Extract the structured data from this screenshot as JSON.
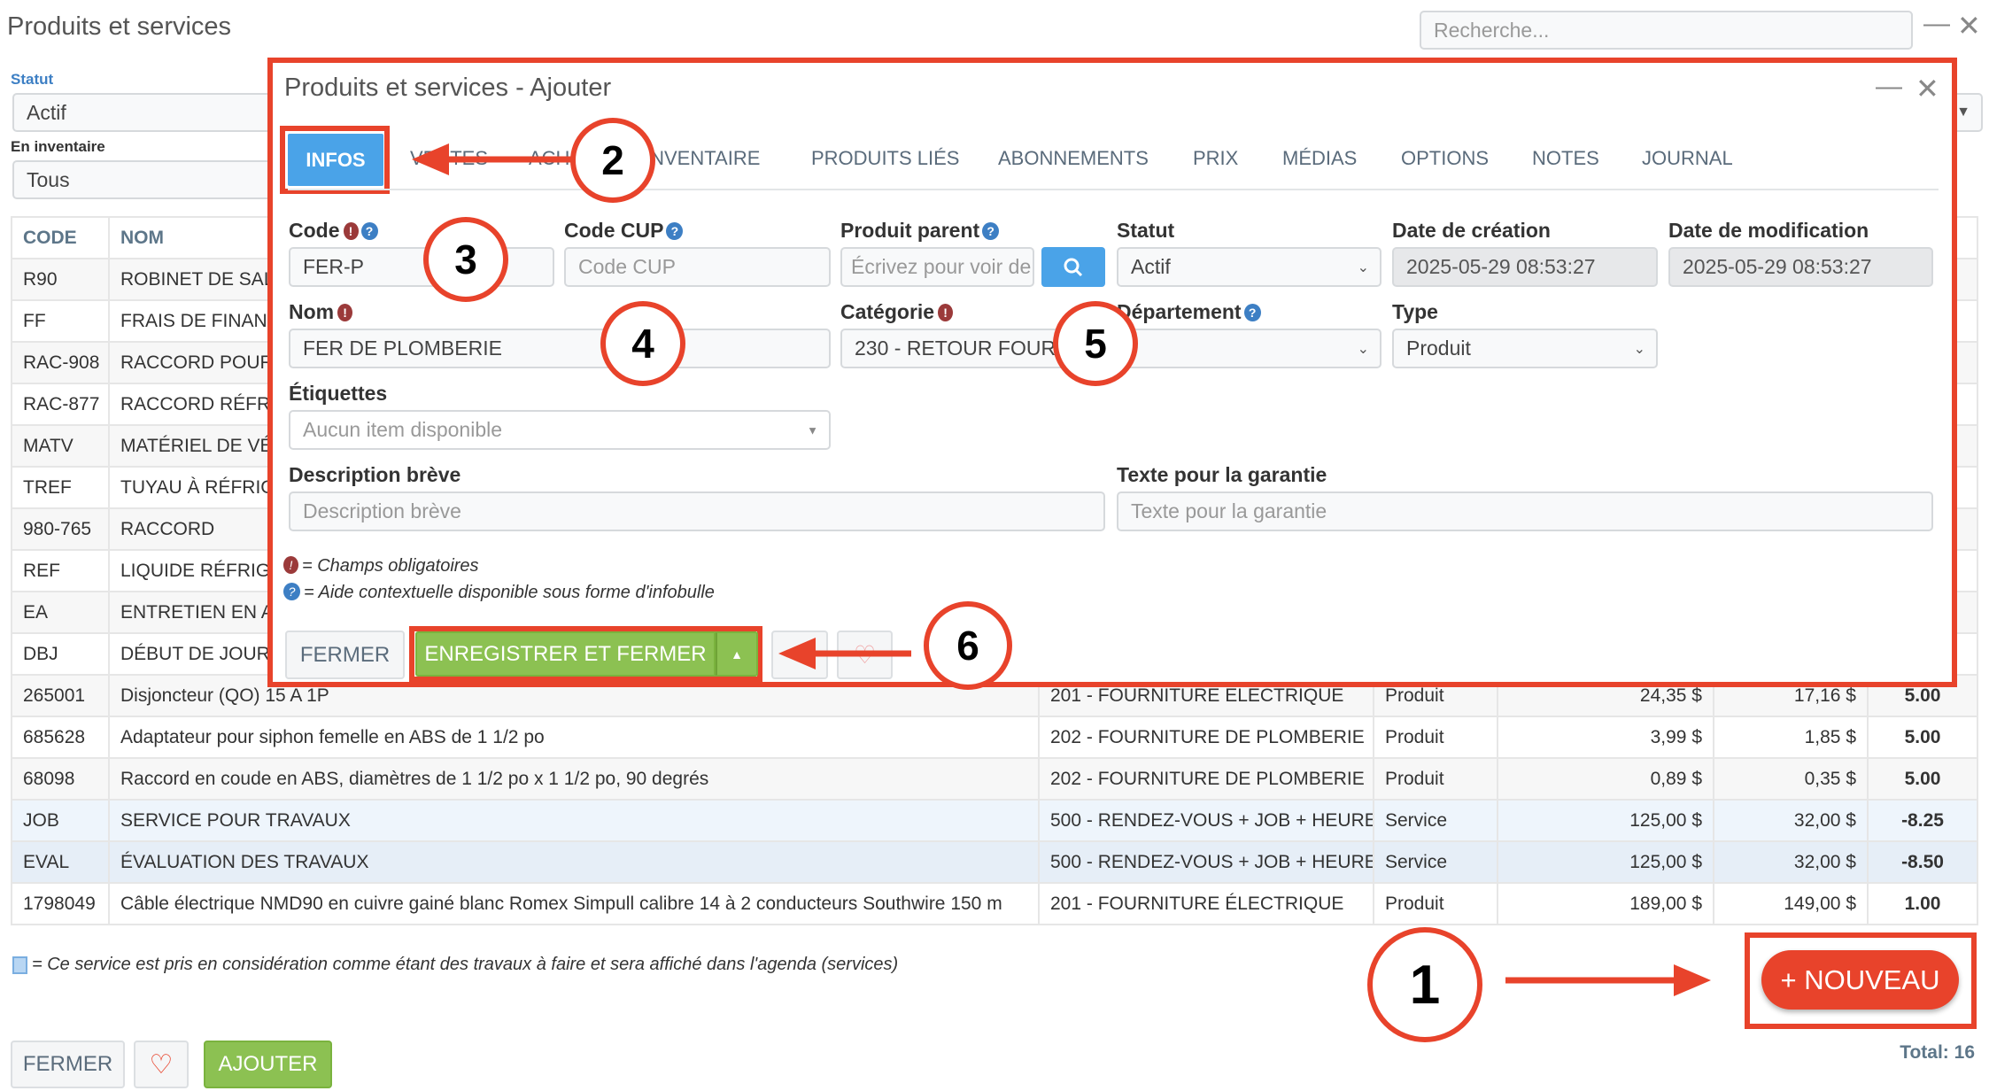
{
  "window": {
    "title": "Produits et services",
    "search_placeholder": "Recherche...",
    "minimize_icon": "minimize-icon",
    "close_icon": "close-icon"
  },
  "filters": {
    "status_label": "Statut",
    "status_value": "Actif",
    "inventory_label": "En inventaire",
    "inventory_value": "Tous"
  },
  "table": {
    "headers": [
      "CODE",
      "NOM",
      "",
      "",
      "",
      "",
      ""
    ],
    "rows": [
      {
        "cells": [
          "R90",
          "ROBINET DE SAL",
          "",
          "",
          "",
          "",
          ""
        ]
      },
      {
        "cells": [
          "FF",
          "FRAIS DE FINANC",
          "",
          "",
          "",
          "",
          ""
        ]
      },
      {
        "cells": [
          "RAC-908",
          "RACCORD POUR",
          "",
          "",
          "",
          "",
          ""
        ]
      },
      {
        "cells": [
          "RAC-877",
          "RACCORD RÉFRIG",
          "",
          "",
          "",
          "",
          ""
        ]
      },
      {
        "cells": [
          "MATV",
          "MATÉRIEL DE VÉ",
          "",
          "",
          "",
          "",
          ""
        ]
      },
      {
        "cells": [
          "TREF",
          "TUYAU À RÉFRIGI",
          "",
          "",
          "",
          "",
          ""
        ]
      },
      {
        "cells": [
          "980-765",
          "RACCORD",
          "",
          "",
          "",
          "",
          ""
        ]
      },
      {
        "cells": [
          "REF",
          "LIQUIDE RÉFRIGÉ",
          "",
          "",
          "",
          "",
          ""
        ]
      },
      {
        "cells": [
          "EA",
          "ENTRETIEN EN A",
          "",
          "",
          "",
          "",
          ""
        ]
      },
      {
        "cells": [
          "DBJ",
          "DÉBUT DE JOURN",
          "",
          "",
          "",
          "",
          ""
        ]
      },
      {
        "cells": [
          "265001",
          "Disjoncteur (QO) 15 A 1P",
          "201 - FOURNITURE ÉLECTRIQUE",
          "Produit",
          "24,35 $",
          "17,16 $",
          "5.00"
        ]
      },
      {
        "cells": [
          "685628",
          "Adaptateur pour siphon femelle en ABS de 1 1/2 po",
          "202 - FOURNITURE DE PLOMBERIE",
          "Produit",
          "3,99 $",
          "1,85 $",
          "5.00"
        ]
      },
      {
        "cells": [
          "68098",
          "Raccord en coude en ABS, diamètres de 1 1/2 po x 1 1/2 po, 90 degrés",
          "202 - FOURNITURE DE PLOMBERIE",
          "Produit",
          "0,89 $",
          "0,35 $",
          "5.00"
        ]
      },
      {
        "cells": [
          "JOB",
          "SERVICE POUR TRAVAUX",
          "500 - RENDEZ-VOUS + JOB + HEURE",
          "Service",
          "125,00 $",
          "32,00 $",
          "-8.25"
        ],
        "service": "job"
      },
      {
        "cells": [
          "EVAL",
          "ÉVALUATION DES TRAVAUX",
          "500 - RENDEZ-VOUS + JOB + HEURE",
          "Service",
          "125,00 $",
          "32,00 $",
          "-8.50"
        ],
        "service": "eval"
      },
      {
        "cells": [
          "1798049",
          "Câble électrique NMD90 en cuivre gainé blanc Romex Simpull calibre 14 à 2 conducteurs Southwire 150 m",
          "201 - FOURNITURE ÉLECTRIQUE",
          "Produit",
          "189,00 $",
          "149,00 $",
          "1.00"
        ]
      }
    ]
  },
  "service_note": "= Ce service est pris en considération comme étant des travaux à faire et sera affiché dans l'agenda (services)",
  "footer": {
    "close_label": "FERMER",
    "add_label": "AJOUTER",
    "new_label": "+ NOUVEAU",
    "total": "Total: 16"
  },
  "modal": {
    "title": "Produits et services - Ajouter",
    "tabs": [
      "INFOS",
      "VENTES",
      "ACH",
      "INVENTAIRE",
      "PRODUITS LIÉS",
      "ABONNEMENTS",
      "PRIX",
      "MÉDIAS",
      "OPTIONS",
      "NOTES",
      "JOURNAL"
    ],
    "active_tab": "INFOS",
    "fields": {
      "code": {
        "label": "Code",
        "value": "FER-P"
      },
      "cup": {
        "label": "Code CUP",
        "placeholder": "Code CUP"
      },
      "parent": {
        "label": "Produit parent",
        "placeholder": "Écrivez pour voir de"
      },
      "statut": {
        "label": "Statut",
        "value": "Actif"
      },
      "created": {
        "label": "Date de création",
        "value": "2025-05-29 08:53:27"
      },
      "modified": {
        "label": "Date de modification",
        "value": "2025-05-29 08:53:27"
      },
      "nom": {
        "label": "Nom",
        "value": "FER DE PLOMBERIE"
      },
      "categorie": {
        "label": "Catégorie",
        "value": "230 - RETOUR FOURN"
      },
      "departement": {
        "label": "Département",
        "value": ""
      },
      "type": {
        "label": "Type",
        "value": "Produit"
      },
      "etiquettes": {
        "label": "Étiquettes",
        "placeholder": "Aucun item disponible"
      },
      "description": {
        "label": "Description brève",
        "placeholder": "Description brève"
      },
      "garantie": {
        "label": "Texte pour la garantie",
        "placeholder": "Texte pour la garantie"
      }
    },
    "legend_required": "= Champs obligatoires",
    "legend_help": "= Aide contextuelle disponible sous forme d'infobulle",
    "close_label": "FERMER",
    "save_label": "ENREGISTRER ET FERMER"
  },
  "annotations": [
    "1",
    "2",
    "3",
    "4",
    "5",
    "6"
  ],
  "colors": {
    "annotation": "#e8432b",
    "primary": "#4aa3e8",
    "success": "#8cc152",
    "danger": "#e8432b",
    "service_row": "#eef5fc"
  }
}
